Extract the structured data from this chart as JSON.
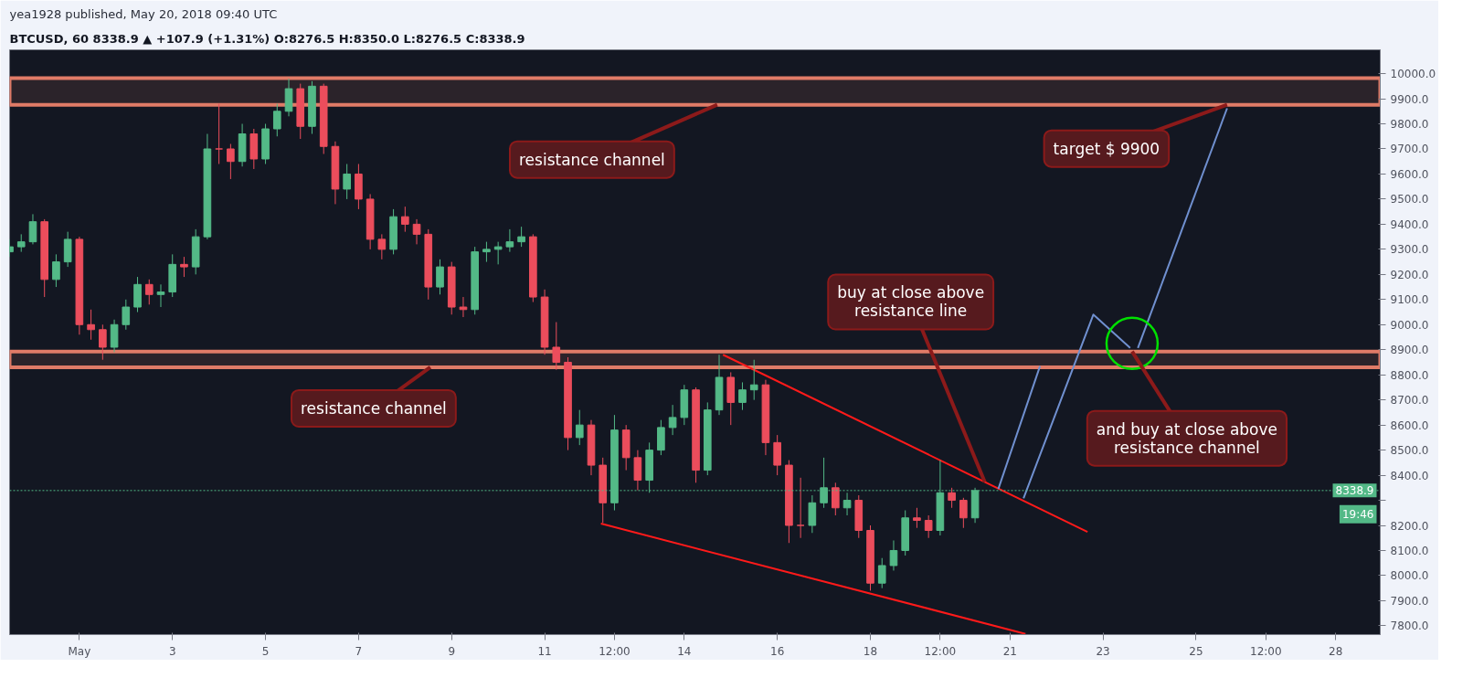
{
  "chart_data": {
    "type": "candlestick",
    "title": "yea1928 published, May 20, 2018 09:40 UTC",
    "subtitle": "BTCUSD, 60  8338.9 ▲ +107.9 (+1.31%)  O:8276.5  H:8350.0  L:8276.5  C:8338.9",
    "x": [
      "2018-04-29T12:00",
      "2018-04-29T18:00",
      "2018-04-30T00:00",
      "2018-04-30T06:00",
      "2018-04-30T12:00",
      "2018-04-30T18:00",
      "2018-05-01T00:00",
      "2018-05-01T06:00",
      "2018-05-01T12:00",
      "2018-05-01T18:00",
      "2018-05-02T00:00",
      "2018-05-02T06:00",
      "2018-05-02T12:00",
      "2018-05-02T18:00",
      "2018-05-03T00:00",
      "2018-05-03T06:00",
      "2018-05-03T12:00",
      "2018-05-03T18:00",
      "2018-05-04T00:00",
      "2018-05-04T06:00",
      "2018-05-04T12:00",
      "2018-05-04T18:00",
      "2018-05-05T00:00",
      "2018-05-05T06:00",
      "2018-05-05T12:00",
      "2018-05-05T18:00",
      "2018-05-06T00:00",
      "2018-05-06T06:00",
      "2018-05-06T12:00",
      "2018-05-06T18:00",
      "2018-05-07T00:00",
      "2018-05-07T06:00",
      "2018-05-07T12:00",
      "2018-05-07T18:00",
      "2018-05-08T00:00",
      "2018-05-08T06:00",
      "2018-05-08T12:00",
      "2018-05-08T18:00",
      "2018-05-09T00:00",
      "2018-05-09T06:00",
      "2018-05-09T12:00",
      "2018-05-09T18:00",
      "2018-05-10T00:00",
      "2018-05-10T06:00",
      "2018-05-10T12:00",
      "2018-05-10T18:00",
      "2018-05-11T00:00",
      "2018-05-11T06:00",
      "2018-05-11T12:00",
      "2018-05-11T18:00",
      "2018-05-12T00:00",
      "2018-05-12T06:00",
      "2018-05-12T12:00",
      "2018-05-12T18:00",
      "2018-05-13T00:00",
      "2018-05-13T06:00",
      "2018-05-13T12:00",
      "2018-05-13T18:00",
      "2018-05-14T00:00",
      "2018-05-14T06:00",
      "2018-05-14T12:00",
      "2018-05-14T18:00",
      "2018-05-15T00:00",
      "2018-05-15T06:00",
      "2018-05-15T12:00",
      "2018-05-15T18:00",
      "2018-05-16T00:00",
      "2018-05-16T06:00",
      "2018-05-16T12:00",
      "2018-05-16T18:00",
      "2018-05-17T00:00",
      "2018-05-17T06:00",
      "2018-05-17T12:00",
      "2018-05-17T18:00",
      "2018-05-18T00:00",
      "2018-05-18T06:00",
      "2018-05-18T12:00",
      "2018-05-18T18:00",
      "2018-05-19T00:00",
      "2018-05-19T06:00",
      "2018-05-19T12:00",
      "2018-05-19T18:00",
      "2018-05-20T00:00",
      "2018-05-20T06:00"
    ],
    "ohlc": [
      [
        9290,
        9340,
        9270,
        9310
      ],
      [
        9310,
        9360,
        9290,
        9330
      ],
      [
        9330,
        9440,
        9320,
        9410
      ],
      [
        9410,
        9420,
        9110,
        9180
      ],
      [
        9180,
        9280,
        9150,
        9250
      ],
      [
        9250,
        9370,
        9230,
        9340
      ],
      [
        9340,
        9350,
        8960,
        9000
      ],
      [
        9000,
        9060,
        8940,
        8980
      ],
      [
        8980,
        9000,
        8860,
        8910
      ],
      [
        8910,
        9020,
        8890,
        9000
      ],
      [
        9000,
        9100,
        8980,
        9070
      ],
      [
        9070,
        9190,
        9050,
        9160
      ],
      [
        9160,
        9180,
        9080,
        9120
      ],
      [
        9120,
        9160,
        9070,
        9130
      ],
      [
        9130,
        9280,
        9110,
        9240
      ],
      [
        9240,
        9270,
        9190,
        9230
      ],
      [
        9230,
        9380,
        9200,
        9350
      ],
      [
        9350,
        9760,
        9340,
        9700
      ],
      [
        9700,
        9880,
        9640,
        9700
      ],
      [
        9700,
        9720,
        9580,
        9650
      ],
      [
        9650,
        9800,
        9630,
        9760
      ],
      [
        9760,
        9780,
        9620,
        9660
      ],
      [
        9660,
        9800,
        9640,
        9780
      ],
      [
        9780,
        9880,
        9750,
        9850
      ],
      [
        9850,
        9980,
        9830,
        9940
      ],
      [
        9940,
        9960,
        9740,
        9790
      ],
      [
        9790,
        9970,
        9760,
        9950
      ],
      [
        9950,
        9960,
        9680,
        9710
      ],
      [
        9710,
        9730,
        9480,
        9540
      ],
      [
        9540,
        9640,
        9500,
        9600
      ],
      [
        9600,
        9640,
        9460,
        9500
      ],
      [
        9500,
        9520,
        9300,
        9340
      ],
      [
        9340,
        9360,
        9260,
        9300
      ],
      [
        9300,
        9460,
        9280,
        9430
      ],
      [
        9430,
        9470,
        9370,
        9400
      ],
      [
        9400,
        9420,
        9320,
        9360
      ],
      [
        9360,
        9380,
        9100,
        9150
      ],
      [
        9150,
        9260,
        9120,
        9230
      ],
      [
        9230,
        9250,
        9040,
        9070
      ],
      [
        9070,
        9110,
        9030,
        9060
      ],
      [
        9060,
        9310,
        9040,
        9290
      ],
      [
        9290,
        9330,
        9250,
        9300
      ],
      [
        9300,
        9330,
        9240,
        9310
      ],
      [
        9310,
        9380,
        9290,
        9330
      ],
      [
        9330,
        9390,
        9310,
        9350
      ],
      [
        9350,
        9360,
        9090,
        9110
      ],
      [
        9110,
        9140,
        8880,
        8910
      ],
      [
        8910,
        9010,
        8820,
        8850
      ],
      [
        8850,
        8870,
        8500,
        8550
      ],
      [
        8550,
        8660,
        8520,
        8600
      ],
      [
        8600,
        8620,
        8400,
        8440
      ],
      [
        8440,
        8470,
        8210,
        8290
      ],
      [
        8290,
        8640,
        8260,
        8580
      ],
      [
        8580,
        8600,
        8420,
        8470
      ],
      [
        8470,
        8500,
        8340,
        8380
      ],
      [
        8380,
        8530,
        8330,
        8500
      ],
      [
        8500,
        8620,
        8480,
        8590
      ],
      [
        8590,
        8680,
        8560,
        8630
      ],
      [
        8630,
        8760,
        8600,
        8740
      ],
      [
        8740,
        8750,
        8370,
        8420
      ],
      [
        8420,
        8690,
        8400,
        8660
      ],
      [
        8660,
        8880,
        8640,
        8790
      ],
      [
        8790,
        8810,
        8600,
        8690
      ],
      [
        8690,
        8770,
        8660,
        8740
      ],
      [
        8740,
        8860,
        8700,
        8760
      ],
      [
        8760,
        8780,
        8480,
        8530
      ],
      [
        8530,
        8560,
        8400,
        8440
      ],
      [
        8440,
        8460,
        8130,
        8200
      ],
      [
        8200,
        8390,
        8150,
        8200
      ],
      [
        8200,
        8320,
        8170,
        8290
      ],
      [
        8290,
        8470,
        8270,
        8350
      ],
      [
        8350,
        8370,
        8240,
        8270
      ],
      [
        8270,
        8330,
        8240,
        8300
      ],
      [
        8300,
        8320,
        8150,
        8180
      ],
      [
        8180,
        8200,
        7940,
        7970
      ],
      [
        7970,
        8070,
        7950,
        8040
      ],
      [
        8040,
        8140,
        8020,
        8100
      ],
      [
        8100,
        8260,
        8080,
        8230
      ],
      [
        8230,
        8270,
        8190,
        8220
      ],
      [
        8220,
        8240,
        8150,
        8180
      ],
      [
        8180,
        8460,
        8160,
        8330
      ],
      [
        8330,
        8350,
        8270,
        8300
      ],
      [
        8300,
        8310,
        8190,
        8230
      ],
      [
        8230,
        8350,
        8210,
        8338.9
      ]
    ],
    "colors": [
      "#53b987",
      "#53b987",
      "#53b987",
      "#eb4d5c",
      "#53b987",
      "#53b987",
      "#eb4d5c",
      "#eb4d5c",
      "#eb4d5c",
      "#53b987",
      "#53b987",
      "#53b987",
      "#eb4d5c",
      "#53b987",
      "#53b987",
      "#eb4d5c",
      "#53b987",
      "#53b987",
      "#eb4d5c",
      "#eb4d5c",
      "#53b987",
      "#eb4d5c",
      "#53b987",
      "#53b987",
      "#53b987",
      "#eb4d5c",
      "#53b987",
      "#eb4d5c",
      "#eb4d5c",
      "#53b987",
      "#eb4d5c",
      "#eb4d5c",
      "#eb4d5c",
      "#53b987",
      "#eb4d5c",
      "#eb4d5c",
      "#eb4d5c",
      "#53b987",
      "#eb4d5c",
      "#eb4d5c",
      "#53b987",
      "#53b987",
      "#53b987",
      "#53b987",
      "#53b987",
      "#eb4d5c",
      "#eb4d5c",
      "#eb4d5c",
      "#eb4d5c",
      "#53b987",
      "#eb4d5c",
      "#eb4d5c",
      "#53b987",
      "#eb4d5c",
      "#eb4d5c",
      "#53b987",
      "#53b987",
      "#53b987",
      "#53b987",
      "#eb4d5c",
      "#53b987",
      "#53b987",
      "#eb4d5c",
      "#53b987",
      "#53b987",
      "#eb4d5c",
      "#eb4d5c",
      "#eb4d5c",
      "#eb4d5c",
      "#53b987",
      "#53b987",
      "#eb4d5c",
      "#53b987",
      "#eb4d5c",
      "#eb4d5c",
      "#53b987",
      "#53b987",
      "#53b987",
      "#eb4d5c",
      "#eb4d5c",
      "#53b987",
      "#eb4d5c",
      "#eb4d5c",
      "#53b987"
    ],
    "series": [
      {
        "type": "line",
        "x": [
          "2018-05-14T20:00",
          "2018-05-22T16:00"
        ],
        "values": [
          8880,
          8174
        ],
        "color": "#ff1a1a"
      },
      {
        "type": "line",
        "x": [
          "2018-05-12T05:00",
          "2018-05-21T08:00"
        ],
        "values": [
          8207,
          7768
        ],
        "color": "#ff1a1a"
      },
      {
        "type": "line",
        "x": [
          "2018-05-20T18:00",
          "2018-05-21T15:30"
        ],
        "values": [
          8345,
          8835
        ],
        "color": "#7090d0"
      },
      {
        "type": "line",
        "x": [
          "2018-05-21T07:00",
          "2018-05-22T19:00",
          "2018-05-23T14:00"
        ],
        "values": [
          8308,
          9040,
          8907
        ],
        "color": "#7090d0"
      },
      {
        "type": "line",
        "x": [
          "2018-05-23T18:00",
          "2018-05-25T16:00"
        ],
        "values": [
          8907,
          9862
        ],
        "color": "#7090d0"
      },
      {
        "type": "scatter",
        "x": [
          "2018-05-23T15:00"
        ],
        "values": [
          8925
        ],
        "color": "#00e000",
        "marker": "circle"
      }
    ],
    "bands": [
      {
        "axis": "y",
        "from": 9876,
        "to": 9982,
        "color": "#e07b67"
      },
      {
        "axis": "y",
        "from": 8830,
        "to": 8893,
        "color": "#e07b67"
      }
    ],
    "ref_lines": [
      {
        "axis": "y",
        "value": 8338.9,
        "label": "8338.9",
        "color": "#53b987",
        "line_style": "dotted"
      }
    ],
    "annotations": [
      {
        "text": "resistance channel",
        "x": "2018-05-14T17:00",
        "y": 9876
      },
      {
        "text": "resistance channel",
        "x": "2018-05-08T13:00",
        "y": 8830
      },
      {
        "text": "buy at close above\nresistance line",
        "x": "2018-05-20T11:00",
        "y": 8373
      },
      {
        "text": "target $ 9900",
        "x": "2018-05-25T16:00",
        "y": 9876
      },
      {
        "text": "and buy at close above\nresistance channel",
        "x": "2018-05-23T15:00",
        "y": 8893
      },
      "19:46"
    ],
    "xlim": [
      "2018-04-29T12:00",
      "2018-05-28T23:00"
    ],
    "xticks": [
      {
        "value": "2018-05-01",
        "label": "May"
      },
      {
        "value": "2018-05-03",
        "label": "3"
      },
      {
        "value": "2018-05-05",
        "label": "5"
      },
      {
        "value": "2018-05-07",
        "label": "7"
      },
      {
        "value": "2018-05-09",
        "label": "9"
      },
      {
        "value": "2018-05-11",
        "label": "11"
      },
      {
        "value": "2018-05-12T12:00",
        "label": "12:00"
      },
      {
        "value": "2018-05-14",
        "label": "14"
      },
      {
        "value": "2018-05-16",
        "label": "16"
      },
      {
        "value": "2018-05-18",
        "label": "18"
      },
      {
        "value": "2018-05-19T12:00",
        "label": "12:00"
      },
      {
        "value": "2018-05-21",
        "label": "21"
      },
      {
        "value": "2018-05-23",
        "label": "23"
      },
      {
        "value": "2018-05-25",
        "label": "25"
      },
      {
        "value": "2018-05-26T12:00",
        "label": "12:00"
      },
      {
        "value": "2018-05-28",
        "label": "28"
      }
    ],
    "ylim": [
      7765,
      10095
    ],
    "yticks": [
      {
        "value": 7800,
        "label": "7800.0"
      },
      {
        "value": 7900,
        "label": "7900.0"
      },
      {
        "value": 8000,
        "label": "8000.0"
      },
      {
        "value": 8100,
        "label": "8100.0"
      },
      {
        "value": 8200,
        "label": "8200.0"
      },
      {
        "value": 8300,
        "label": null
      },
      {
        "value": 8400,
        "label": "8400.0"
      },
      {
        "value": 8500,
        "label": "8500.0"
      },
      {
        "value": 8600,
        "label": "8600.0"
      },
      {
        "value": 8700,
        "label": "8700.0"
      },
      {
        "value": 8800,
        "label": "8800.0"
      },
      {
        "value": 8900,
        "label": "8900.0"
      },
      {
        "value": 9000,
        "label": "9000.0"
      },
      {
        "value": 9100,
        "label": "9100.0"
      },
      {
        "value": 9200,
        "label": "9200.0"
      },
      {
        "value": 9300,
        "label": "9300.0"
      },
      {
        "value": 9400,
        "label": "9400.0"
      },
      {
        "value": 9500,
        "label": "9500.0"
      },
      {
        "value": 9600,
        "label": "9600.0"
      },
      {
        "value": 9700,
        "label": "9700.0"
      },
      {
        "value": 9800,
        "label": "9800.0"
      },
      {
        "value": 9900,
        "label": "9900.0"
      },
      {
        "value": 10000,
        "label": "10000.0"
      }
    ],
    "grid": false
  }
}
